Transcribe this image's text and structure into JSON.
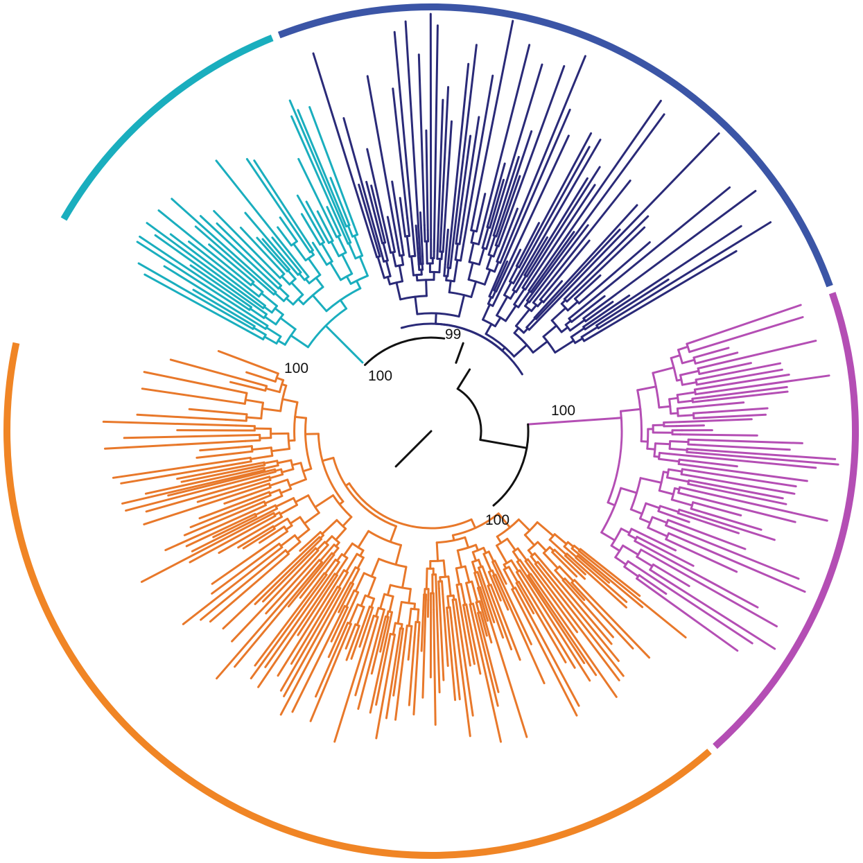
{
  "colors": {
    "backbone": "#111111",
    "clade_cyan": "#1aaebe",
    "clade_navy": "#2a2a78",
    "clade_magenta": "#b44eb4",
    "clade_orange": "#e8782a",
    "ring_cyan": "#1aaebe",
    "ring_blue": "#3b55a6",
    "ring_magenta": "#b44eb4",
    "ring_orange": "#f08525"
  },
  "clades": [
    {
      "id": "cyan",
      "color_key": "clade_cyan",
      "ring_color_key": "ring_cyan"
    },
    {
      "id": "navy",
      "color_key": "clade_navy",
      "ring_color_key": "ring_blue"
    },
    {
      "id": "magenta",
      "color_key": "clade_magenta",
      "ring_color_key": "ring_magenta"
    },
    {
      "id": "orange",
      "color_key": "clade_orange",
      "ring_color_key": "ring_orange"
    }
  ],
  "support_values": {
    "cyan_node": "100",
    "navy_cyan_node": "100",
    "navy_node": "99",
    "magenta_node": "100",
    "orange_node": "100"
  }
}
